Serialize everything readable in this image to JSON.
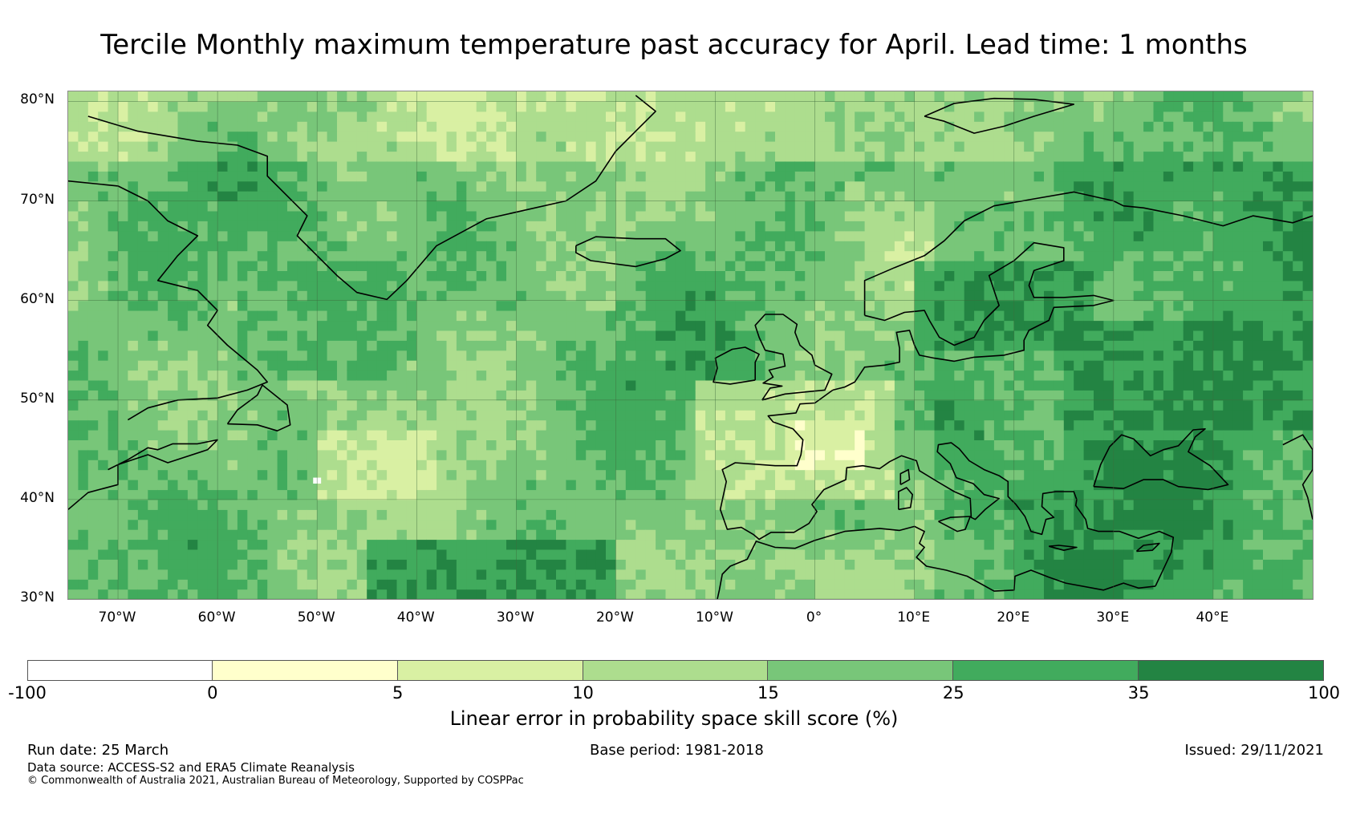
{
  "title": "Tercile Monthly maximum temperature past accuracy for April. Lead time: 1 months",
  "map": {
    "region": "North Atlantic and Europe",
    "lon_range": [
      -75,
      50
    ],
    "lat_range": [
      30,
      81
    ],
    "grid": true,
    "lat_labels": [
      "80°N",
      "70°N",
      "60°N",
      "50°N",
      "40°N",
      "30°N"
    ],
    "lat_values": [
      80,
      70,
      60,
      50,
      40,
      30
    ],
    "lon_labels": [
      "70°W",
      "60°W",
      "50°W",
      "40°W",
      "30°W",
      "20°W",
      "10°W",
      "0°",
      "10°E",
      "20°E",
      "30°E",
      "40°E"
    ],
    "lon_values": [
      -70,
      -60,
      -50,
      -40,
      -30,
      -20,
      -10,
      0,
      10,
      20,
      30,
      40
    ],
    "colors": {
      "land_outline": "#000000",
      "grid_line": "#3d6b3d"
    },
    "skill_regions": [
      {
        "name": "north-sea-east-atlantic-low",
        "bin": 2,
        "lon": [
          -12,
          8
        ],
        "lat": [
          40,
          52
        ]
      },
      {
        "name": "iberia-france-low",
        "bin": 1,
        "lon": [
          -3,
          5
        ],
        "lat": [
          43,
          48
        ]
      },
      {
        "name": "mid-atlantic-low",
        "bin": 2,
        "lon": [
          -50,
          -38
        ],
        "lat": [
          40,
          47
        ]
      },
      {
        "name": "scandinavia-high",
        "bin": 6,
        "lon": [
          10,
          28
        ],
        "lat": [
          55,
          64
        ]
      },
      {
        "name": "russia-high",
        "bin": 6,
        "lon": [
          25,
          50
        ],
        "lat": [
          47,
          58
        ]
      },
      {
        "name": "black-sea-high",
        "bin": 6,
        "lon": [
          27,
          42
        ],
        "lat": [
          41,
          46
        ]
      },
      {
        "name": "subtropical-atlantic-high",
        "bin": 6,
        "lon": [
          -45,
          -20
        ],
        "lat": [
          30,
          36
        ]
      },
      {
        "name": "labrador-sea-high",
        "bin": 5,
        "lon": [
          -58,
          -42
        ],
        "lat": [
          52,
          64
        ]
      },
      {
        "name": "arctic-low",
        "bin": 3,
        "lon": [
          -20,
          20
        ],
        "lat": [
          74,
          81
        ]
      }
    ]
  },
  "colorbar": {
    "bins": [
      {
        "color": "#ffffff",
        "from": -100,
        "to": 0
      },
      {
        "color": "#ffffcc",
        "from": 0,
        "to": 5
      },
      {
        "color": "#d9f0a3",
        "from": 5,
        "to": 10
      },
      {
        "color": "#addd8e",
        "from": 10,
        "to": 15
      },
      {
        "color": "#78c679",
        "from": 15,
        "to": 25
      },
      {
        "color": "#41ab5d",
        "from": 25,
        "to": 35
      },
      {
        "color": "#238443",
        "from": 35,
        "to": 100
      }
    ],
    "ticks": [
      "-100",
      "0",
      "5",
      "10",
      "15",
      "25",
      "35",
      "100"
    ],
    "label": "Linear error in probability space skill score (%)"
  },
  "footer": {
    "run_date": "Run date: 25 March",
    "base_period": "Base period: 1981-2018",
    "issued": "Issued: 29/11/2021",
    "data_source": "Data source: ACCESS-S2 and ERA5 Climate Reanalysis",
    "copyright": "© Commonwealth of Australia 2021, Australian Bureau of Meteorology, Supported by COSPPac"
  }
}
